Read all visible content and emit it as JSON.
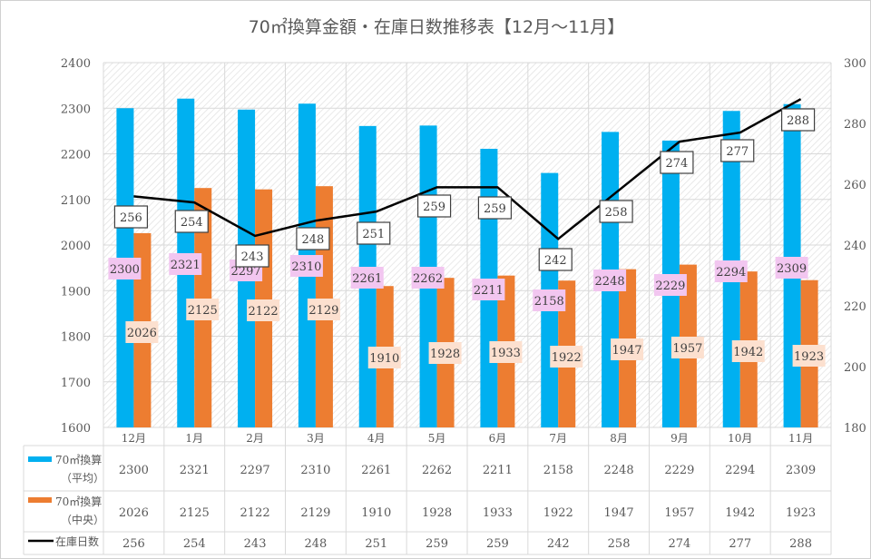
{
  "title": "70㎡換算金額・在庫日数推移表【12月～11月】",
  "colors": {
    "avg": "#00b0f0",
    "median": "#ed7d31",
    "days": "#000000",
    "avg_label_bg": "#f2c6f0",
    "median_label_bg": "#fce0cf"
  },
  "chart_data": {
    "type": "bar",
    "title": "70㎡換算金額・在庫日数推移表【12月～11月】",
    "categories": [
      "12月",
      "1月",
      "2月",
      "3月",
      "4月",
      "5月",
      "6月",
      "7月",
      "8月",
      "9月",
      "10月",
      "11月"
    ],
    "series": [
      {
        "name": "70㎡換算（平均）",
        "type": "bar",
        "axis": "left",
        "values": [
          2300,
          2321,
          2297,
          2310,
          2261,
          2262,
          2211,
          2158,
          2248,
          2229,
          2294,
          2309
        ]
      },
      {
        "name": "70㎡換算（中央）",
        "type": "bar",
        "axis": "left",
        "values": [
          2026,
          2125,
          2122,
          2129,
          1910,
          1928,
          1933,
          1922,
          1947,
          1957,
          1942,
          1923
        ]
      },
      {
        "name": "在庫日数",
        "type": "line",
        "axis": "right",
        "values": [
          256,
          254,
          243,
          248,
          251,
          259,
          259,
          242,
          258,
          274,
          277,
          288
        ]
      }
    ],
    "ylim": [
      1600,
      2400
    ],
    "yticks": [
      1600,
      1700,
      1800,
      1900,
      2000,
      2100,
      2200,
      2300,
      2400
    ],
    "y2lim": [
      180,
      300
    ],
    "y2ticks": [
      180,
      200,
      220,
      240,
      260,
      280,
      300
    ],
    "grid": true,
    "legend": "data-table-bottom",
    "legend_labels": [
      [
        "70㎡換算",
        "（平均）"
      ],
      [
        "70㎡換算",
        "（中央）"
      ],
      [
        "在庫日数"
      ]
    ]
  }
}
